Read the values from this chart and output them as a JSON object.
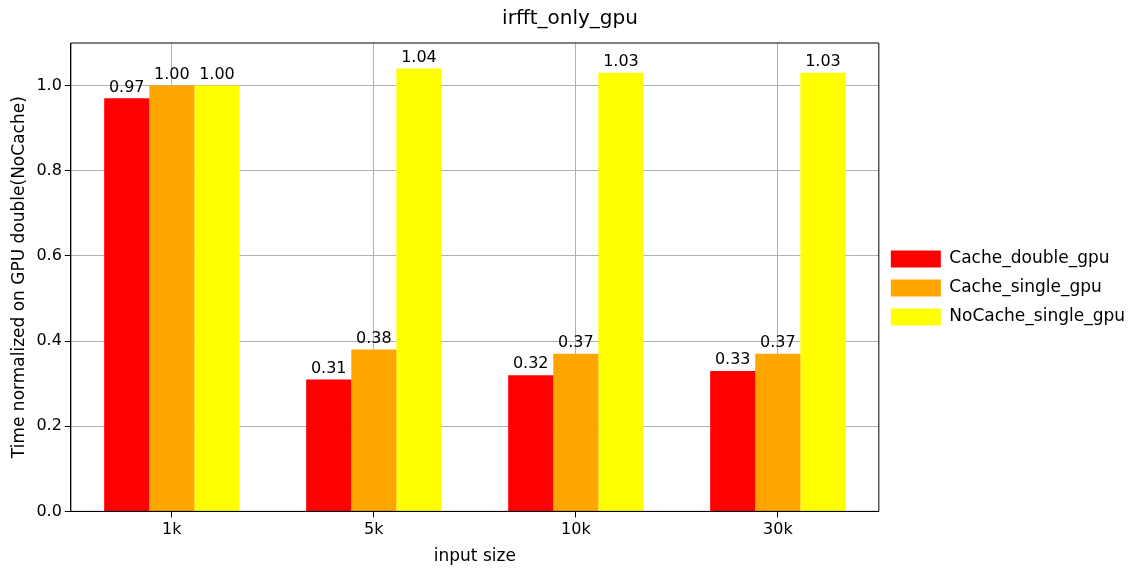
{
  "chart_data": {
    "type": "bar",
    "title": "irfft_only_gpu",
    "xlabel": "input size",
    "ylabel": "Time normalized on GPU double(NoCache)",
    "categories": [
      "1k",
      "5k",
      "10k",
      "30k"
    ],
    "series": [
      {
        "name": "Cache_double_gpu",
        "color": "#ff0000",
        "values": [
          0.97,
          0.31,
          0.32,
          0.33
        ],
        "value_labels": [
          "0.97",
          "0.31",
          "0.32",
          "0.33"
        ]
      },
      {
        "name": "Cache_single_gpu",
        "color": "#ffa500",
        "values": [
          1.0,
          0.38,
          0.37,
          0.37
        ],
        "value_labels": [
          "1.00",
          "0.38",
          "0.37",
          "0.37"
        ]
      },
      {
        "name": "NoCache_single_gpu",
        "color": "#ffff00",
        "values": [
          1.0,
          1.04,
          1.03,
          1.03
        ],
        "value_labels": [
          "1.00",
          "1.04",
          "1.03",
          "1.03"
        ]
      }
    ],
    "ylim": [
      0,
      1.1
    ],
    "yticks": [
      {
        "value": 0,
        "label": "0.0"
      },
      {
        "value": 0.2,
        "label": "0.2"
      },
      {
        "value": 0.4,
        "label": "0.4"
      },
      {
        "value": 0.6,
        "label": "0.6"
      },
      {
        "value": 0.8,
        "label": "0.8"
      },
      {
        "value": 1.0,
        "label": "1.0"
      }
    ],
    "grid": true,
    "legend": "right"
  }
}
